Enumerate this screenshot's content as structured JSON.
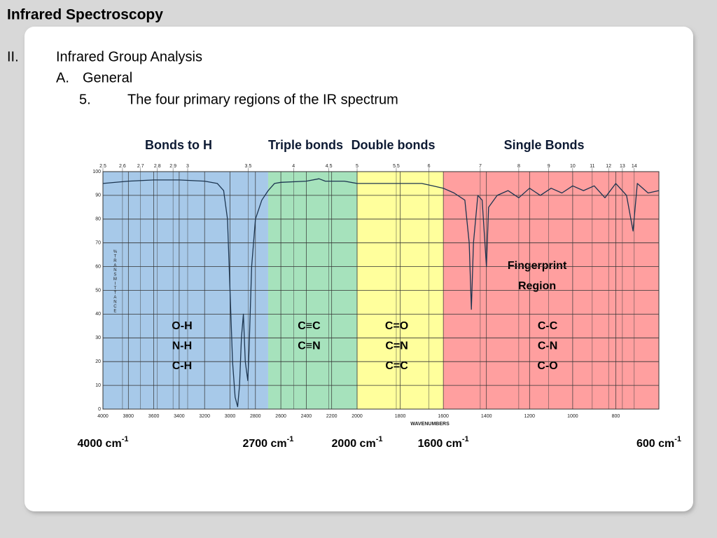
{
  "slide": {
    "title": "Infrared Spectroscopy",
    "outline": [
      {
        "marker": "II.",
        "text": "Infrared Group Analysis"
      },
      {
        "marker": "A.",
        "text": "General"
      },
      {
        "marker": "5.",
        "text": "The four primary regions of the IR spectrum"
      }
    ]
  },
  "chart_data": {
    "type": "line",
    "color": "#1c3550",
    "x": [
      4000,
      3800,
      3600,
      3400,
      3200,
      3100,
      3050,
      3020,
      2980,
      2960,
      2940,
      2925,
      2910,
      2895,
      2880,
      2860,
      2850,
      2830,
      2800,
      2750,
      2700,
      2650,
      2600,
      2400,
      2300,
      2250,
      2100,
      2000,
      1800,
      1700,
      1650,
      1600,
      1550,
      1500,
      1480,
      1470,
      1460,
      1440,
      1420,
      1400,
      1390,
      1350,
      1300,
      1250,
      1200,
      1150,
      1100,
      1050,
      1000,
      950,
      900,
      850,
      800,
      750,
      720,
      700,
      650,
      600
    ],
    "values": [
      95,
      96,
      96.5,
      96.5,
      96,
      95,
      92,
      80,
      20,
      5,
      1,
      10,
      30,
      40,
      20,
      12,
      25,
      60,
      80,
      88,
      92,
      95,
      95.5,
      96,
      97,
      96,
      96,
      95,
      95,
      95,
      94,
      93,
      91,
      88,
      70,
      42,
      70,
      90,
      88,
      60,
      85,
      90,
      92,
      89,
      93,
      90,
      93,
      91,
      94,
      92,
      94,
      89,
      95,
      90,
      75,
      95,
      91,
      92
    ],
    "xlim": [
      4000,
      600
    ],
    "ylim": [
      0,
      100
    ],
    "xticks": [
      4000,
      3800,
      3600,
      3400,
      3200,
      3000,
      2800,
      2600,
      2400,
      2200,
      2000,
      1800,
      1600,
      1400,
      1200,
      1000,
      800
    ],
    "x2ticks": [
      2.5,
      2.6,
      2.7,
      2.8,
      2.9,
      3,
      3.5,
      4,
      4.5,
      5,
      5.5,
      6,
      7,
      8,
      9,
      10,
      11,
      12,
      13,
      14
    ],
    "yticks": [
      0,
      10,
      20,
      30,
      40,
      50,
      60,
      70,
      80,
      90,
      100
    ],
    "grid": true,
    "xlabel": "WAVENUMBERS",
    "ylabel": "%TRANSMITTANCE",
    "regions": [
      {
        "name": "Bonds to H",
        "from": 4000,
        "to": 2700,
        "color": "#a7c9e9",
        "bonds": [
          "O-H",
          "N-H",
          "C-H"
        ]
      },
      {
        "name": "Triple bonds",
        "from": 2700,
        "to": 2000,
        "color": "#a6e2bc",
        "bonds": [
          "C≡C",
          "C≡N"
        ]
      },
      {
        "name": "Double bonds",
        "from": 2000,
        "to": 1600,
        "color": "#ffff9c",
        "bonds": [
          "C=O",
          "C=N",
          "C=C"
        ]
      },
      {
        "name": "Single Bonds",
        "from": 1600,
        "to": 600,
        "color": "#ff9f9f",
        "bonds": [
          "C-C",
          "C-N",
          "C-O"
        ],
        "annotation": [
          "Fingerprint",
          "Region"
        ]
      }
    ],
    "boundaries": [
      {
        "value": 4000,
        "label": "4000 cm",
        "sup": "-1"
      },
      {
        "value": 2700,
        "label": "2700 cm",
        "sup": "-1"
      },
      {
        "value": 2000,
        "label": "2000 cm",
        "sup": "-1"
      },
      {
        "value": 1600,
        "label": "1600 cm",
        "sup": "-1"
      },
      {
        "value": 600,
        "label": "600 cm",
        "sup": "-1"
      }
    ]
  }
}
